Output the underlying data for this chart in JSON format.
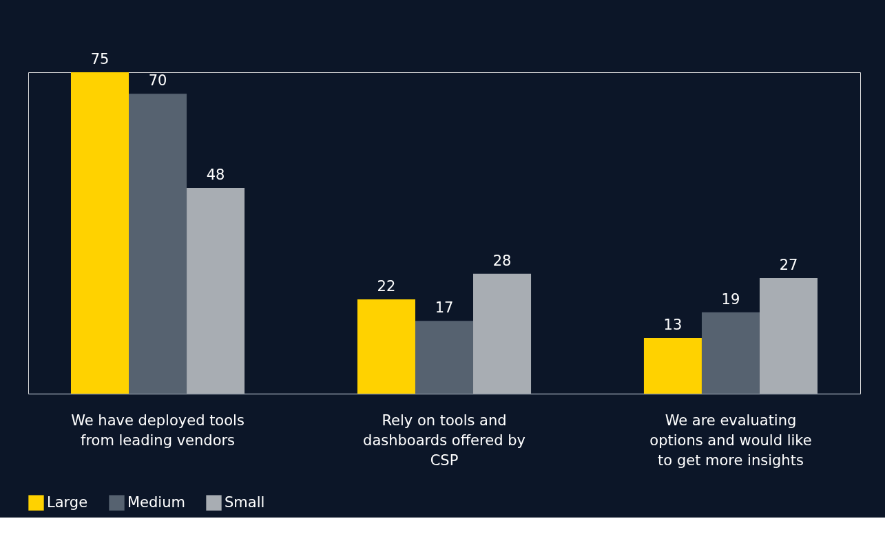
{
  "chart_data": {
    "type": "bar",
    "categories": [
      "We have deployed tools from leading vendors",
      "Rely on tools and dashboards offered by CSP",
      "We are evaluating options and would like to get more insights"
    ],
    "series": [
      {
        "name": "Large",
        "color": "#ffd200",
        "values": [
          75,
          22,
          13
        ]
      },
      {
        "name": "Medium",
        "color": "#566270",
        "values": [
          70,
          17,
          19
        ]
      },
      {
        "name": "Small",
        "color": "#a8adb3",
        "values": [
          48,
          28,
          27
        ]
      }
    ],
    "data_labels": true,
    "legend": "bottom",
    "grid": false
  }
}
